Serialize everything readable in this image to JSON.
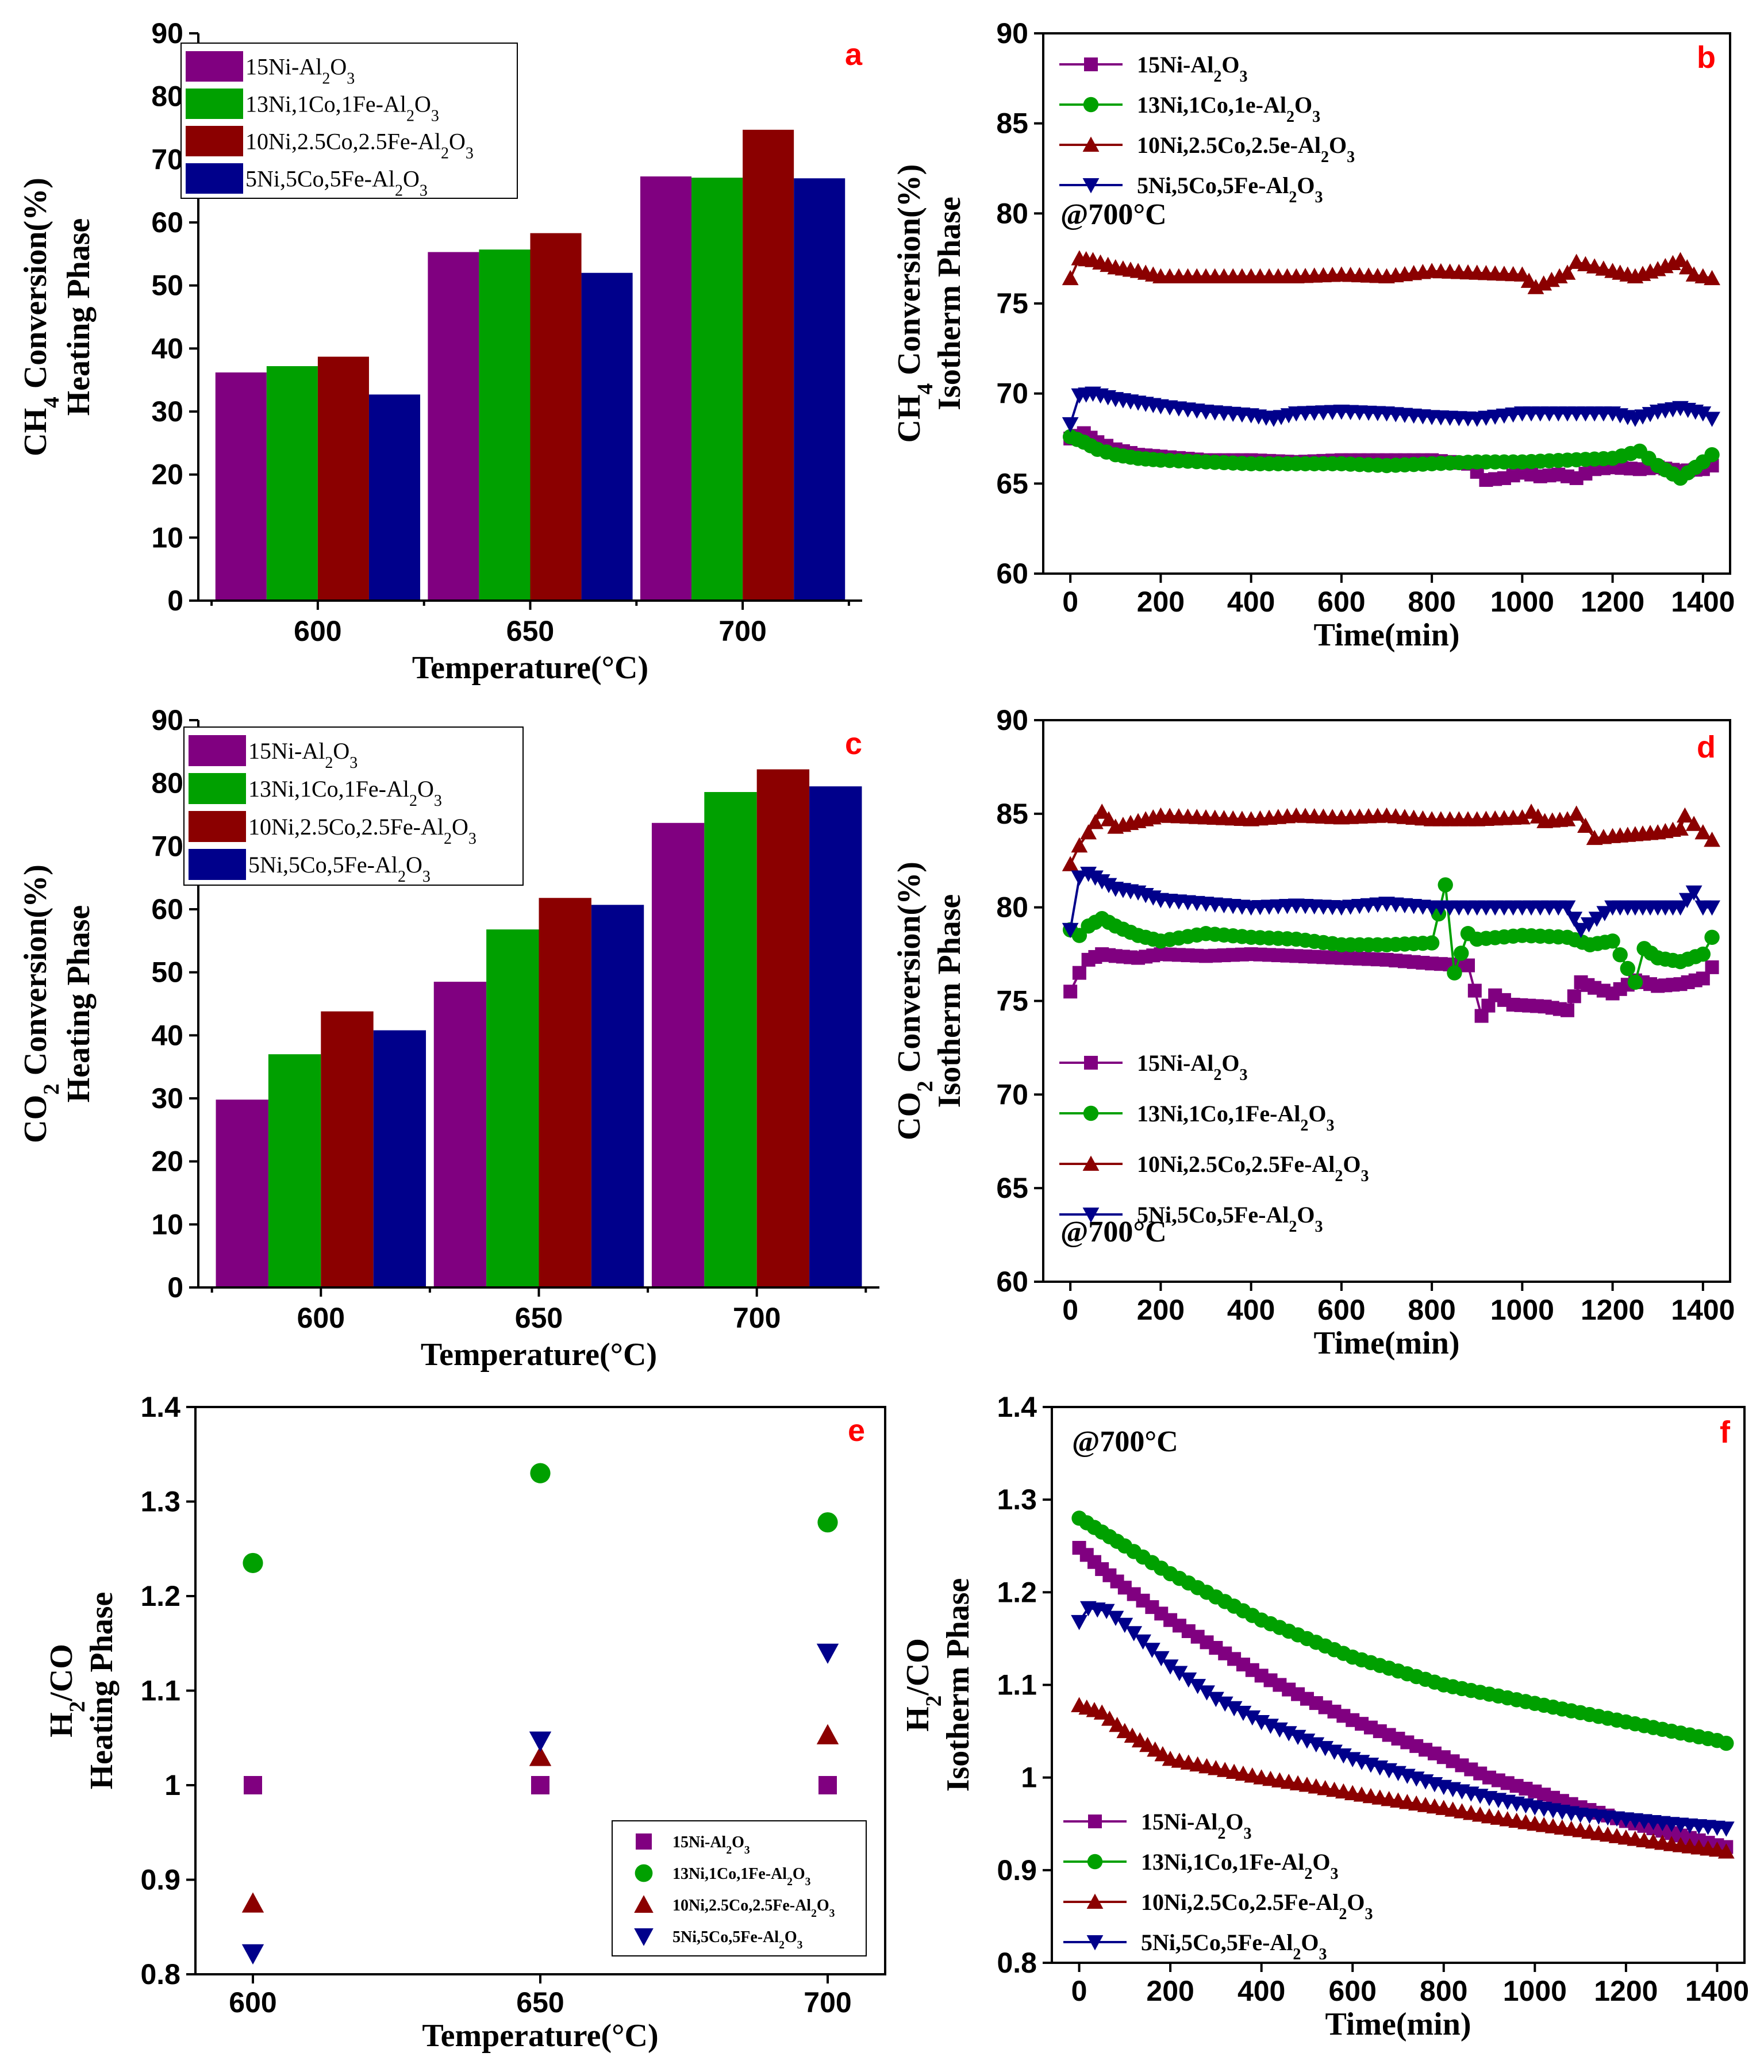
{
  "colors": {
    "s15Ni": "#800080",
    "s13Ni": "#00a000",
    "s10Ni": "#8b0000",
    "s5Ni": "#00008b"
  },
  "chart_data": [
    {
      "panel": "a",
      "type": "bar",
      "xlabel": "Temperature(°C)",
      "ylabel": [
        "CH4 Conversion(%)",
        "Heating Phase"
      ],
      "ylim": [
        0,
        90
      ],
      "yticks": [
        0,
        10,
        20,
        30,
        40,
        50,
        60,
        70,
        80,
        90
      ],
      "categories": [
        "600",
        "650",
        "700"
      ],
      "legend_position": "top-left",
      "series": [
        {
          "name": "15Ni-Al2O3",
          "color": "#800080",
          "values": [
            36.2,
            55.3,
            67.3
          ]
        },
        {
          "name": "13Ni,1Co,1Fe-Al2O3",
          "color": "#00a000",
          "values": [
            37.2,
            55.7,
            67.1
          ]
        },
        {
          "name": "10Ni,2.5Co,2.5Fe-Al2O3",
          "color": "#8b0000",
          "values": [
            38.7,
            58.3,
            74.7
          ]
        },
        {
          "name": "5Ni,5Co,5Fe-Al2O3",
          "color": "#00008b",
          "values": [
            32.7,
            52.0,
            67.0
          ]
        }
      ]
    },
    {
      "panel": "b",
      "type": "line",
      "xlabel": "Time(min)",
      "ylabel": [
        "CH4 Conversion(%)",
        "Isotherm Phase"
      ],
      "xlim": [
        -60,
        1460
      ],
      "ylim": [
        60,
        90
      ],
      "xticks": [
        0,
        200,
        400,
        600,
        800,
        1000,
        1200,
        1400
      ],
      "yticks": [
        60,
        65,
        70,
        75,
        80,
        85,
        90
      ],
      "annotation": "@700°C",
      "legend_position": "top-left",
      "series": [
        {
          "name": "15Ni-Al2O3",
          "color": "#800080",
          "marker": "square",
          "x": [
            0,
            30,
            60,
            100,
            150,
            200,
            300,
            400,
            500,
            600,
            700,
            800,
            880,
            920,
            960,
            1000,
            1040,
            1080,
            1120,
            1160,
            1200,
            1260,
            1300,
            1350,
            1400,
            1420
          ],
          "y": [
            67.5,
            67.8,
            67.3,
            66.9,
            66.6,
            66.5,
            66.3,
            66.3,
            66.2,
            66.3,
            66.3,
            66.3,
            66.1,
            65.2,
            65.3,
            65.6,
            65.4,
            65.5,
            65.3,
            65.8,
            65.9,
            65.8,
            65.9,
            65.7,
            65.8,
            66.0
          ]
        },
        {
          "name": "13Ni,1Co,1e-Al2O3",
          "color": "#00a000",
          "marker": "circle",
          "x": [
            0,
            30,
            60,
            100,
            150,
            200,
            300,
            400,
            500,
            600,
            700,
            800,
            900,
            1000,
            1100,
            1200,
            1260,
            1300,
            1350,
            1400,
            1420
          ],
          "y": [
            67.6,
            67.3,
            66.9,
            66.6,
            66.4,
            66.3,
            66.2,
            66.1,
            66.1,
            66.1,
            66.0,
            66.1,
            66.2,
            66.2,
            66.3,
            66.4,
            66.8,
            66.0,
            65.3,
            66.2,
            66.6
          ]
        },
        {
          "name": "10Ni,2.5Co,2.5e-Al2O3",
          "color": "#8b0000",
          "marker": "triangle-up",
          "x": [
            0,
            20,
            50,
            100,
            150,
            200,
            300,
            400,
            500,
            600,
            700,
            800,
            900,
            1000,
            1030,
            1100,
            1120,
            1200,
            1250,
            1300,
            1350,
            1380,
            1420
          ],
          "y": [
            76.4,
            77.5,
            77.4,
            77.0,
            76.8,
            76.5,
            76.5,
            76.5,
            76.5,
            76.6,
            76.5,
            76.8,
            76.7,
            76.6,
            75.9,
            76.7,
            77.3,
            76.8,
            76.5,
            76.9,
            77.4,
            76.6,
            76.4
          ]
        },
        {
          "name": "5Ni,5Co,5Fe-Al2O3",
          "color": "#00008b",
          "marker": "triangle-down",
          "x": [
            0,
            20,
            50,
            100,
            150,
            200,
            300,
            400,
            450,
            500,
            600,
            700,
            800,
            900,
            1000,
            1100,
            1200,
            1250,
            1300,
            1350,
            1400,
            1420
          ],
          "y": [
            68.3,
            69.9,
            70.0,
            69.7,
            69.5,
            69.3,
            69.0,
            68.8,
            68.6,
            68.9,
            69.0,
            68.9,
            68.7,
            68.6,
            68.9,
            68.9,
            68.9,
            68.6,
            69.0,
            69.2,
            68.9,
            68.6
          ]
        }
      ]
    },
    {
      "panel": "c",
      "type": "bar",
      "xlabel": "Temperature(°C)",
      "ylabel": [
        "CO2 Conversion(%)",
        "Heating Phase"
      ],
      "ylim": [
        0,
        90
      ],
      "yticks": [
        0,
        10,
        20,
        30,
        40,
        50,
        60,
        70,
        80,
        90
      ],
      "categories": [
        "600",
        "650",
        "700"
      ],
      "legend_position": "top-left",
      "series": [
        {
          "name": "15Ni-Al2O3",
          "color": "#800080",
          "values": [
            29.8,
            48.5,
            73.7
          ]
        },
        {
          "name": "13Ni,1Co,1Fe-Al2O3",
          "color": "#00a000",
          "values": [
            37.0,
            56.8,
            78.6
          ]
        },
        {
          "name": "10Ni,2.5Co,2.5Fe-Al2O3",
          "color": "#8b0000",
          "values": [
            43.8,
            61.8,
            82.2
          ]
        },
        {
          "name": "5Ni,5Co,5Fe-Al2O3",
          "color": "#00008b",
          "values": [
            40.8,
            60.7,
            79.5
          ]
        }
      ]
    },
    {
      "panel": "d",
      "type": "line",
      "xlabel": "Time(min)",
      "ylabel": [
        "CO2 Conversion(%)",
        "Isotherm Phase"
      ],
      "xlim": [
        -60,
        1460
      ],
      "ylim": [
        60,
        90
      ],
      "xticks": [
        0,
        200,
        400,
        600,
        800,
        1000,
        1200,
        1400
      ],
      "yticks": [
        60,
        65,
        70,
        75,
        80,
        85,
        90
      ],
      "annotation": "@700°C",
      "legend_position": "bottom-left",
      "series": [
        {
          "name": "15Ni-Al2O3",
          "color": "#800080",
          "marker": "square",
          "x": [
            0,
            20,
            40,
            70,
            100,
            150,
            200,
            300,
            400,
            500,
            600,
            700,
            800,
            880,
            910,
            940,
            980,
            1050,
            1100,
            1130,
            1160,
            1200,
            1250,
            1300,
            1350,
            1400,
            1420
          ],
          "y": [
            75.5,
            76.5,
            77.2,
            77.5,
            77.4,
            77.3,
            77.5,
            77.4,
            77.5,
            77.4,
            77.3,
            77.2,
            77.0,
            76.9,
            74.2,
            75.3,
            74.8,
            74.7,
            74.5,
            76.0,
            75.7,
            75.4,
            76.1,
            75.8,
            75.9,
            76.2,
            76.8
          ]
        },
        {
          "name": "13Ni,1Co,1Fe-Al2O3",
          "color": "#00a000",
          "marker": "circle",
          "x": [
            0,
            20,
            40,
            70,
            100,
            150,
            200,
            300,
            400,
            500,
            600,
            700,
            800,
            830,
            850,
            880,
            900,
            1000,
            1100,
            1150,
            1200,
            1250,
            1270,
            1300,
            1350,
            1400,
            1420
          ],
          "y": [
            78.8,
            78.5,
            79.0,
            79.4,
            79.0,
            78.5,
            78.2,
            78.6,
            78.4,
            78.3,
            78.0,
            78.0,
            78.1,
            81.2,
            76.5,
            78.6,
            78.3,
            78.5,
            78.4,
            78.0,
            78.2,
            76.0,
            77.8,
            77.3,
            77.1,
            77.5,
            78.4
          ]
        },
        {
          "name": "10Ni,2.5Co,2.5Fe-Al2O3",
          "color": "#8b0000",
          "marker": "triangle-up",
          "x": [
            0,
            20,
            40,
            70,
            100,
            150,
            200,
            300,
            400,
            500,
            600,
            700,
            800,
            900,
            1000,
            1020,
            1050,
            1100,
            1120,
            1160,
            1200,
            1250,
            1300,
            1350,
            1360,
            1400,
            1420
          ],
          "y": [
            82.3,
            83.3,
            84.0,
            85.1,
            84.3,
            84.6,
            84.9,
            84.8,
            84.7,
            84.9,
            84.8,
            84.9,
            84.7,
            84.7,
            84.8,
            85.1,
            84.6,
            84.7,
            85.0,
            83.7,
            83.8,
            83.9,
            84.0,
            84.2,
            84.9,
            84.0,
            83.6
          ]
        },
        {
          "name": "5Ni,5Co,5Fe-Al2O3",
          "color": "#00008b",
          "marker": "triangle-down",
          "x": [
            0,
            20,
            40,
            70,
            100,
            150,
            200,
            300,
            400,
            500,
            600,
            700,
            800,
            900,
            1000,
            1100,
            1130,
            1200,
            1250,
            1300,
            1350,
            1380,
            1400,
            1420
          ],
          "y": [
            78.8,
            81.6,
            81.8,
            81.4,
            81.0,
            80.8,
            80.4,
            80.2,
            80.0,
            80.1,
            80.0,
            80.2,
            80.0,
            80.0,
            80.0,
            80.0,
            78.8,
            80.0,
            80.0,
            80.0,
            80.0,
            80.8,
            80.0,
            80.0
          ]
        }
      ]
    },
    {
      "panel": "e",
      "type": "scatter",
      "xlabel": "Temperature(°C)",
      "ylabel": [
        "H2/CO",
        "Heating Phase"
      ],
      "xlim": [
        590,
        710
      ],
      "ylim": [
        0.8,
        1.4
      ],
      "xticks": [
        600,
        650,
        700
      ],
      "yticks": [
        0.8,
        0.9,
        1.0,
        1.1,
        1.2,
        1.3,
        1.4
      ],
      "legend_position": "bottom-right",
      "series": [
        {
          "name": "15Ni-Al2O3",
          "color": "#800080",
          "marker": "square",
          "x": [
            600,
            650,
            700
          ],
          "y": [
            1.0,
            1.0,
            1.0
          ]
        },
        {
          "name": "13Ni,1Co,1Fe-Al2O3",
          "color": "#00a000",
          "marker": "circle",
          "x": [
            600,
            650,
            700
          ],
          "y": [
            1.235,
            1.33,
            1.278
          ]
        },
        {
          "name": "10Ni,2.5Co,2.5Fe-Al2O3",
          "color": "#8b0000",
          "marker": "triangle-up",
          "x": [
            600,
            650,
            700
          ],
          "y": [
            0.875,
            1.03,
            1.053
          ]
        },
        {
          "name": "5Ni,5Co,5Fe-Al2O3",
          "color": "#00008b",
          "marker": "triangle-down",
          "x": [
            600,
            650,
            700
          ],
          "y": [
            0.822,
            1.047,
            1.14
          ]
        }
      ]
    },
    {
      "panel": "f",
      "type": "line",
      "xlabel": "Time(min)",
      "ylabel": [
        "H2/CO",
        "Isotherm Phase"
      ],
      "xlim": [
        -60,
        1460
      ],
      "ylim": [
        0.8,
        1.4
      ],
      "xticks": [
        0,
        200,
        400,
        600,
        800,
        1000,
        1200,
        1400
      ],
      "yticks": [
        0.8,
        0.9,
        1.0,
        1.1,
        1.2,
        1.3,
        1.4
      ],
      "annotation": "@700°C",
      "legend_position": "bottom-left",
      "series": [
        {
          "name": "15Ni-Al2O3",
          "color": "#800080",
          "marker": "square",
          "x": [
            0,
            50,
            100,
            200,
            300,
            400,
            500,
            600,
            700,
            800,
            900,
            1000,
            1100,
            1200,
            1300,
            1400,
            1420
          ],
          "y": [
            1.248,
            1.225,
            1.205,
            1.17,
            1.14,
            1.11,
            1.085,
            1.062,
            1.042,
            1.022,
            1.0,
            0.985,
            0.968,
            0.953,
            0.94,
            0.927,
            0.925
          ]
        },
        {
          "name": "13Ni,1Co,1Fe-Al2O3",
          "color": "#00a000",
          "marker": "circle",
          "x": [
            0,
            50,
            100,
            200,
            300,
            400,
            500,
            600,
            700,
            800,
            900,
            1000,
            1100,
            1200,
            1300,
            1400,
            1420
          ],
          "y": [
            1.28,
            1.265,
            1.25,
            1.22,
            1.195,
            1.17,
            1.15,
            1.13,
            1.115,
            1.1,
            1.09,
            1.08,
            1.07,
            1.06,
            1.05,
            1.04,
            1.037
          ]
        },
        {
          "name": "10Ni,2.5Co,2.5Fe-Al2O3",
          "color": "#8b0000",
          "marker": "triangle-up",
          "x": [
            0,
            50,
            100,
            150,
            200,
            300,
            400,
            500,
            600,
            700,
            800,
            900,
            1000,
            1100,
            1200,
            1300,
            1400,
            1420
          ],
          "y": [
            1.078,
            1.07,
            1.05,
            1.035,
            1.02,
            1.01,
            1.0,
            0.992,
            0.983,
            0.975,
            0.967,
            0.958,
            0.95,
            0.943,
            0.935,
            0.928,
            0.922,
            0.92
          ]
        },
        {
          "name": "5Ni,5Co,5Fe-Al2O3",
          "color": "#00008b",
          "marker": "triangle-down",
          "x": [
            0,
            20,
            60,
            100,
            200,
            300,
            400,
            500,
            600,
            700,
            800,
            900,
            1000,
            1100,
            1200,
            1300,
            1400,
            1420
          ],
          "y": [
            1.168,
            1.183,
            1.18,
            1.165,
            1.12,
            1.085,
            1.06,
            1.04,
            1.02,
            1.005,
            0.99,
            0.978,
            0.968,
            0.96,
            0.955,
            0.95,
            0.946,
            0.945
          ]
        }
      ]
    }
  ]
}
